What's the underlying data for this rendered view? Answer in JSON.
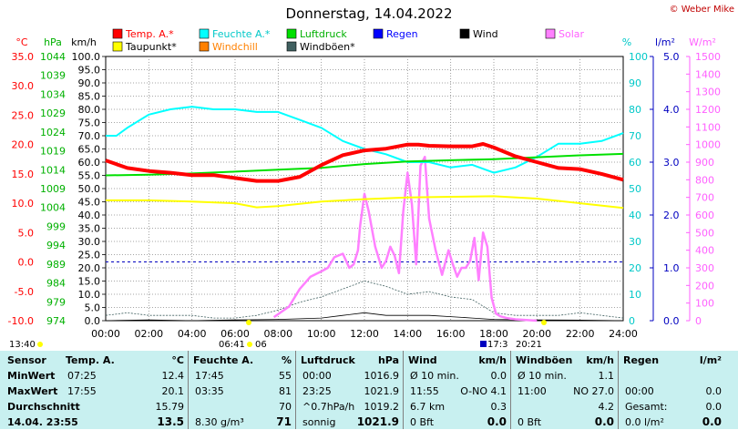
{
  "chart_data": {
    "type": "line",
    "title": "Donnerstag, 14.04.2022",
    "credit": "© Weber Mike",
    "x_ticks": [
      "00:00",
      "02:00",
      "04:00",
      "06:00",
      "08:00",
      "10:00",
      "12:00",
      "14:00",
      "16:00",
      "18:00",
      "20:00",
      "22:00",
      "24:00"
    ],
    "axes": {
      "temp": {
        "unit": "°C",
        "min": -10,
        "max": 35,
        "ticks": [
          "35.0",
          "30.0",
          "25.0",
          "20.0",
          "15.0",
          "10.0",
          "5.0",
          "0.0",
          "-5.0",
          "-10.0"
        ],
        "color": "#ff0000"
      },
      "pressure": {
        "unit": "hPa",
        "min": 974,
        "max": 1044,
        "ticks": [
          "1044",
          "1039",
          "1034",
          "1029",
          "1024",
          "1019",
          "1014",
          "1009",
          "1004",
          "999",
          "994",
          "989",
          "984",
          "979",
          "974"
        ],
        "color": "#00a000"
      },
      "wind": {
        "unit": "km/h",
        "min": 0,
        "max": 100,
        "ticks": [
          "100.0",
          "95.0",
          "90.0",
          "85.0",
          "80.0",
          "75.0",
          "70.0",
          "65.0",
          "60.0",
          "55.0",
          "50.0",
          "45.0",
          "40.0",
          "35.0",
          "30.0",
          "25.0",
          "20.0",
          "15.0",
          "10.0",
          "5.0",
          "0.0"
        ],
        "color": "#000000"
      },
      "humidity": {
        "unit": "%",
        "min": 0,
        "max": 100,
        "ticks": [
          "100",
          "90",
          "80",
          "70",
          "60",
          "50",
          "40",
          "30",
          "20",
          "10",
          "0"
        ],
        "color": "#00c8c8"
      },
      "rain": {
        "unit": "l/m²",
        "min": 0,
        "max": 5,
        "ticks": [
          "5.0",
          "4.0",
          "3.0",
          "2.0",
          "1.0",
          "0.0"
        ],
        "color": "#0000c0"
      },
      "solar": {
        "unit": "W/m²",
        "min": 0,
        "max": 1500,
        "ticks": [
          "1500",
          "1400",
          "1300",
          "1200",
          "1100",
          "1000",
          "900",
          "800",
          "700",
          "600",
          "500",
          "400",
          "300",
          "200",
          "100",
          "0"
        ],
        "color": "#ff80ff"
      }
    },
    "legend": [
      {
        "label": "Temp. A.*",
        "color": "#ff0000"
      },
      {
        "label": "Feuchte A.*",
        "color": "#00ffff"
      },
      {
        "label": "Luftdruck",
        "color": "#00e000"
      },
      {
        "label": "Regen",
        "color": "#0000ff"
      },
      {
        "label": "Wind",
        "color": "#000000"
      },
      {
        "label": "Solar",
        "color": "#ff80ff"
      },
      {
        "label": "Taupunkt*",
        "color": "#ffff00"
      },
      {
        "label": "Windchill",
        "color": "#ff8000"
      },
      {
        "label": "Windböen*",
        "color": "#406060"
      }
    ],
    "reference_line_temp": 0.0,
    "series": [
      {
        "name": "Temp. A.*",
        "axis": "temp",
        "color": "#ff0000",
        "x": [
          0,
          1,
          2,
          3,
          4,
          5,
          6,
          7,
          8,
          9,
          10,
          11,
          12,
          13,
          14,
          14.5,
          15,
          16,
          17,
          17.5,
          18,
          19,
          20,
          21,
          22,
          23,
          24
        ],
        "y": [
          17.3,
          16.0,
          15.5,
          15.2,
          14.8,
          14.8,
          14.3,
          13.8,
          13.8,
          14.5,
          16.5,
          18.2,
          19.0,
          19.3,
          20.0,
          20.0,
          19.8,
          19.7,
          19.7,
          20.1,
          19.5,
          18.0,
          17.0,
          16.0,
          15.8,
          15.0,
          14.0
        ]
      },
      {
        "name": "Feuchte A.*",
        "axis": "humidity",
        "color": "#00ffff",
        "x": [
          0,
          0.5,
          1,
          2,
          3,
          4,
          5,
          6,
          7,
          8,
          9,
          10,
          11,
          12,
          13,
          14,
          15,
          16,
          17,
          18,
          19,
          20,
          21,
          22,
          23,
          24
        ],
        "y": [
          70,
          70,
          73,
          78,
          80,
          81,
          80,
          80,
          79,
          79,
          76,
          73,
          68,
          65,
          63,
          60,
          60,
          58,
          59,
          56,
          58,
          62,
          67,
          67,
          68,
          71
        ]
      },
      {
        "name": "Luftdruck",
        "axis": "pressure",
        "color": "#00e000",
        "x": [
          0,
          2,
          4,
          6,
          8,
          10,
          12,
          14,
          16,
          18,
          20,
          22,
          24
        ],
        "y": [
          1012.5,
          1012.7,
          1013.0,
          1013.5,
          1014.0,
          1014.5,
          1015.5,
          1016.2,
          1016.5,
          1016.8,
          1017.3,
          1017.8,
          1018.2
        ]
      },
      {
        "name": "Taupunkt*",
        "axis": "temp",
        "color": "#ffff00",
        "x": [
          0,
          2,
          4,
          6,
          7,
          8,
          10,
          12,
          14,
          16,
          18,
          20,
          22,
          24
        ],
        "y": [
          10.5,
          10.5,
          10.3,
          10.0,
          9.3,
          9.5,
          10.3,
          10.7,
          11.0,
          11.1,
          11.2,
          10.8,
          10.0,
          9.2
        ]
      },
      {
        "name": "Solar",
        "axis": "solar",
        "color": "#ff80ff",
        "x": [
          7.8,
          8.5,
          9.0,
          9.5,
          10.0,
          10.3,
          10.6,
          11.0,
          11.3,
          11.5,
          11.7,
          11.8,
          12.0,
          12.2,
          12.5,
          12.8,
          13.0,
          13.2,
          13.4,
          13.6,
          13.8,
          14.0,
          14.2,
          14.4,
          14.6,
          14.8,
          15.0,
          15.3,
          15.6,
          15.9,
          16.1,
          16.3,
          16.5,
          16.7,
          16.9,
          17.1,
          17.3,
          17.5,
          17.7,
          17.9,
          18.1,
          18.3,
          18.6,
          19.0,
          19.5,
          20.0
        ],
        "y": [
          20,
          80,
          180,
          250,
          280,
          300,
          360,
          380,
          300,
          320,
          400,
          540,
          720,
          620,
          420,
          300,
          340,
          420,
          370,
          270,
          620,
          840,
          660,
          320,
          880,
          930,
          580,
          400,
          260,
          400,
          320,
          250,
          300,
          300,
          340,
          470,
          230,
          500,
          420,
          130,
          40,
          25,
          15,
          8,
          4,
          0
        ]
      },
      {
        "name": "Windböen*",
        "axis": "wind",
        "color": "#406060",
        "x": [
          0,
          1,
          2,
          3,
          4,
          5,
          6,
          7,
          8,
          9,
          10,
          11,
          12,
          13,
          14,
          15,
          16,
          17,
          18,
          19,
          20,
          21,
          22,
          23,
          24
        ],
        "y": [
          2,
          3,
          2,
          2,
          2,
          1,
          1,
          2,
          4,
          7,
          9,
          12,
          15,
          13,
          10,
          11,
          9,
          8,
          3,
          2,
          2,
          2,
          3,
          2,
          1
        ]
      },
      {
        "name": "Wind",
        "axis": "wind",
        "color": "#000000",
        "x": [
          0,
          2,
          4,
          6,
          8,
          10,
          11,
          12,
          13,
          14,
          15,
          16,
          17,
          18,
          20,
          22,
          24
        ],
        "y": [
          0,
          0.3,
          0,
          0.3,
          0.5,
          1,
          2,
          3,
          2,
          2,
          2,
          1.5,
          1,
          0.5,
          0.3,
          0.2,
          0
        ]
      }
    ],
    "sun_events": {
      "sunrise": "06:41",
      "sunrise_extra": "06",
      "sunset": "20:21",
      "moon_set": "13:40",
      "moon_rise": "17:3"
    }
  },
  "table": {
    "row_labels": [
      "Sensor",
      "MinWert",
      "MaxWert",
      "Durchschnitt",
      "14.04. 23:55"
    ],
    "temp": {
      "title": "Temp. A.",
      "unit": "°C",
      "rows": [
        [
          "07:25",
          "12.4"
        ],
        [
          "17:55",
          "20.1"
        ],
        [
          "",
          "15.79"
        ],
        [
          "",
          "13.5"
        ]
      ]
    },
    "humidity": {
      "title": "Feuchte A.",
      "unit": "%",
      "rows": [
        [
          "17:45",
          "55"
        ],
        [
          "03:35",
          "81"
        ],
        [
          "",
          "70"
        ],
        [
          "8.30 g/m³",
          "71"
        ]
      ]
    },
    "pressure": {
      "title": "Luftdruck",
      "unit": "hPa",
      "rows": [
        [
          "00:00",
          "1016.9"
        ],
        [
          "23:25",
          "1021.9"
        ],
        [
          "^0.7hPa/h",
          "1019.2"
        ],
        [
          "sonnig",
          "1021.9"
        ]
      ]
    },
    "wind": {
      "title": "Wind",
      "unit": "km/h",
      "rows": [
        [
          "Ø 10 min.",
          "0.0"
        ],
        [
          "11:55",
          "O-NO 4.1"
        ],
        [
          "6.7 km",
          "0.3"
        ],
        [
          "0 Bft",
          "0.0"
        ]
      ]
    },
    "gusts": {
      "title": "Windböen",
      "unit": "km/h",
      "rows": [
        [
          "Ø 10 min.",
          "1.1"
        ],
        [
          "11:00",
          "NO 27.0"
        ],
        [
          "",
          "4.2"
        ],
        [
          "0 Bft",
          "0.0"
        ]
      ]
    },
    "rain": {
      "title": "Regen",
      "unit": "l/m²",
      "rows": [
        [
          "",
          ""
        ],
        [
          "00:00",
          "0.0"
        ],
        [
          "Gesamt:",
          "0.0"
        ],
        [
          "0.0 l/m²",
          "0.0"
        ]
      ]
    }
  }
}
